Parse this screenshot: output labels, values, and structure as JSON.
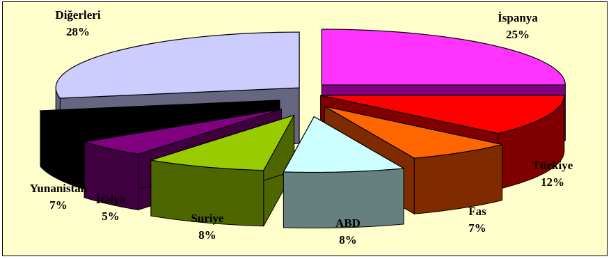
{
  "chart_data": {
    "type": "pie",
    "title": "",
    "slices": [
      {
        "label": "İspanya",
        "value": 25,
        "value_label": "25%",
        "color": "#ff33ff",
        "side": "#800080"
      },
      {
        "label": "Türkiye",
        "value": 12,
        "value_label": "12%",
        "color": "#ff0000",
        "side": "#800000"
      },
      {
        "label": "Fas",
        "value": 7,
        "value_label": "7%",
        "color": "#ff6600",
        "side": "#802a00"
      },
      {
        "label": "ABD",
        "value": 8,
        "value_label": "8%",
        "color": "#ccffff",
        "side": "#668080"
      },
      {
        "label": "Suriye",
        "value": 8,
        "value_label": "8%",
        "color": "#99cc00",
        "side": "#4d6600"
      },
      {
        "label": "İtalya",
        "value": 5,
        "value_label": "5%",
        "color": "#800080",
        "side": "#400040"
      },
      {
        "label": "Yunanistan",
        "value": 7,
        "value_label": "7%",
        "color": "#000000",
        "side": "#000000"
      },
      {
        "label": "Diğerleri",
        "value": 28,
        "value_label": "28%",
        "color": "#ccccff",
        "side": "#666680"
      }
    ],
    "style": "3d-exploded"
  }
}
